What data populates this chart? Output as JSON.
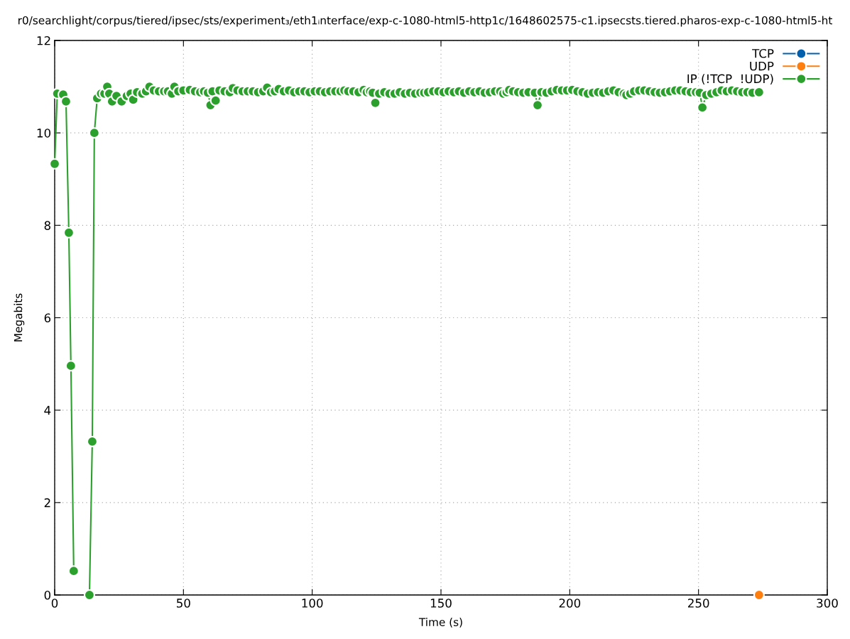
{
  "chart_data": {
    "type": "line",
    "title": "r0/searchlight/corpus/tiered/ipsec/sts/experiment₃/eth1ᵢnterface/exp-c-1080-html5-http1c/1648602575-c1.ipsecsts.tiered.pharos-exp-c-1080-html5-ht",
    "xlabel": "Time (s)",
    "ylabel": "Megabits",
    "xlim": [
      0,
      300
    ],
    "xticks": [
      0,
      50,
      100,
      150,
      200,
      250,
      300
    ],
    "ylim": [
      0,
      12
    ],
    "yticks": [
      0,
      2,
      4,
      6,
      8,
      10,
      12
    ],
    "grid": true,
    "legend": "top right",
    "marker": "circle",
    "line_style": "solid",
    "series": [
      {
        "name": "TCP",
        "color": "#0060ad"
      },
      {
        "name": "UDP",
        "color": "#ff7f0e",
        "x": [
          273.5
        ],
        "values": [
          0
        ]
      },
      {
        "name": "IP (!TCP  !UDP)",
        "color": "#2ca02c",
        "x": [
          0,
          1,
          3.3,
          4.4,
          5.5,
          6.3,
          7.4,
          10,
          13.5,
          14.6,
          15.4,
          16.5,
          18,
          19.3,
          20.4,
          21.2,
          22.3,
          24,
          26,
          28,
          29.5,
          30.5,
          32,
          34,
          35.5,
          36.8,
          38.5,
          40.5,
          42.5,
          44,
          45.5,
          46.5,
          48,
          50,
          52.5,
          54.5,
          56.5,
          58,
          59.5,
          60.5,
          61.3,
          62.5,
          64,
          66,
          68,
          69.2,
          71,
          73,
          75,
          77,
          79,
          81,
          82.5,
          84,
          85.5,
          87,
          89,
          91,
          93,
          95,
          97,
          99,
          101,
          103,
          105,
          107,
          109,
          111,
          112.5,
          114,
          116,
          118,
          120,
          121.2,
          122.5,
          123.5,
          124.5,
          126,
          128,
          130,
          132,
          134,
          136,
          138,
          140,
          142,
          143.5,
          145,
          147,
          149,
          151,
          153,
          155,
          157,
          159,
          161,
          163,
          165,
          167,
          169,
          171,
          173,
          174.2,
          175.5,
          176.5,
          178,
          180,
          182,
          184,
          186.5,
          187.5,
          189,
          191,
          193,
          195,
          197,
          199,
          201,
          203,
          205,
          207,
          209,
          211,
          213,
          215,
          217,
          219,
          221,
          222,
          223.5,
          225,
          227,
          229,
          231,
          233,
          235,
          237,
          239,
          241,
          243,
          245,
          247,
          249,
          250.5,
          251.5,
          253,
          255,
          257,
          259,
          261,
          263,
          265,
          267,
          269,
          271,
          273.5
        ],
        "values": [
          9.33,
          10.85,
          10.83,
          10.68,
          7.84,
          4.96,
          0.52,
          null,
          0,
          3.32,
          10.0,
          10.75,
          10.85,
          10.85,
          11.0,
          10.85,
          10.68,
          10.8,
          10.68,
          10.8,
          10.85,
          10.72,
          10.88,
          10.85,
          10.9,
          11.0,
          10.92,
          10.9,
          10.9,
          10.9,
          10.85,
          11.0,
          10.9,
          10.92,
          10.93,
          10.9,
          10.88,
          10.9,
          10.87,
          10.6,
          10.9,
          10.7,
          10.92,
          10.9,
          10.88,
          10.97,
          10.92,
          10.9,
          10.9,
          10.9,
          10.88,
          10.9,
          10.98,
          10.88,
          10.9,
          10.95,
          10.9,
          10.92,
          10.88,
          10.9,
          10.9,
          10.88,
          10.9,
          10.9,
          10.88,
          10.9,
          10.9,
          10.9,
          10.92,
          10.9,
          10.9,
          10.88,
          10.93,
          10.88,
          10.9,
          10.87,
          10.65,
          10.85,
          10.88,
          10.85,
          10.85,
          10.88,
          10.85,
          10.87,
          10.85,
          10.87,
          10.87,
          10.88,
          10.9,
          10.9,
          10.88,
          10.9,
          10.88,
          10.9,
          10.87,
          10.9,
          10.88,
          10.9,
          10.87,
          10.88,
          10.9,
          10.9,
          10.85,
          10.88,
          10.93,
          10.9,
          10.88,
          10.87,
          10.88,
          10.87,
          10.6,
          10.88,
          10.87,
          10.9,
          10.93,
          10.92,
          10.92,
          10.93,
          10.9,
          10.88,
          10.85,
          10.87,
          10.88,
          10.87,
          10.9,
          10.92,
          10.88,
          10.85,
          10.82,
          10.85,
          10.9,
          10.92,
          10.92,
          10.9,
          10.88,
          10.87,
          10.88,
          10.9,
          10.92,
          10.92,
          10.9,
          10.88,
          10.88,
          10.87,
          10.55,
          10.82,
          10.85,
          10.88,
          10.92,
          10.9,
          10.92,
          10.9,
          10.88,
          10.88,
          10.87,
          10.88
        ]
      }
    ]
  }
}
